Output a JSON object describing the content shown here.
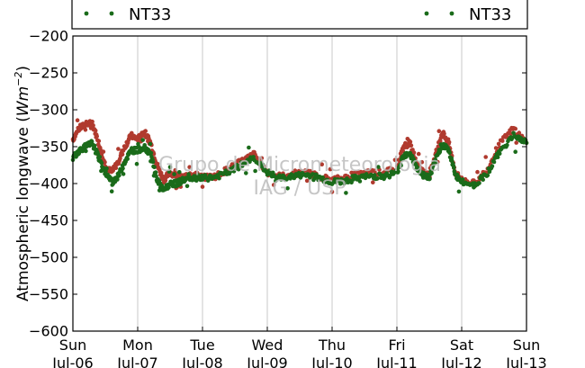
{
  "chart_data": {
    "type": "scatter",
    "title": "",
    "xlabel": "",
    "ylabel": "Atmospheric longwave (Wm^-2)",
    "ylabel_parts": {
      "main": "Atmospheric longwave (",
      "unit_base": "Wm",
      "unit_exp": "−2",
      "close": ")"
    },
    "ylim": [
      -600,
      -200
    ],
    "yticks": [
      -200,
      -250,
      -300,
      -350,
      -400,
      -450,
      -500,
      -550,
      -600
    ],
    "ytick_labels": [
      "−200",
      "−250",
      "−300",
      "−350",
      "−400",
      "−450",
      "−500",
      "−550",
      "−600"
    ],
    "xlim": [
      "2014-07-06",
      "2014-07-13"
    ],
    "xticks": [
      {
        "day": "Sun",
        "date": "Jul-06"
      },
      {
        "day": "Mon",
        "date": "Jul-07"
      },
      {
        "day": "Tue",
        "date": "Jul-08"
      },
      {
        "day": "Wed",
        "date": "Jul-09"
      },
      {
        "day": "Thu",
        "date": "Jul-10"
      },
      {
        "day": "Fri",
        "date": "Jul-11"
      },
      {
        "day": "Sat",
        "date": "Jul-12"
      },
      {
        "day": "Sun",
        "date": "Jul-13"
      }
    ],
    "grid": "vertical",
    "legend": [
      {
        "label": "NT33",
        "color": "#1a6b1a",
        "position": "top-left"
      },
      {
        "label": "NT33",
        "color": "#1a6b1a",
        "position": "top-right"
      }
    ],
    "series": [
      {
        "color": "#b03a2e",
        "x": [
          0,
          0.1,
          0.2,
          0.3,
          0.4,
          0.5,
          0.6,
          0.7,
          0.8,
          0.9,
          1.0,
          1.1,
          1.2,
          1.3,
          1.4,
          1.5,
          1.6,
          1.7,
          1.8,
          1.9,
          2.0,
          2.2,
          2.4,
          2.6,
          2.8,
          3.0,
          3.2,
          3.4,
          3.6,
          3.8,
          4.0,
          4.2,
          4.4,
          4.6,
          4.8,
          5.0,
          5.1,
          5.2,
          5.3,
          5.4,
          5.5,
          5.6,
          5.7,
          5.8,
          5.9,
          6.0,
          6.2,
          6.4,
          6.6,
          6.8,
          7.0
        ],
        "y": [
          -340,
          -325,
          -320,
          -318,
          -345,
          -375,
          -385,
          -370,
          -350,
          -335,
          -340,
          -330,
          -345,
          -375,
          -395,
          -385,
          -390,
          -392,
          -390,
          -388,
          -392,
          -390,
          -380,
          -370,
          -360,
          -385,
          -390,
          -388,
          -385,
          -390,
          -395,
          -392,
          -388,
          -385,
          -385,
          -380,
          -350,
          -345,
          -370,
          -385,
          -390,
          -360,
          -330,
          -345,
          -385,
          -395,
          -400,
          -380,
          -345,
          -325,
          -345
        ]
      },
      {
        "color": "#1a6b1a",
        "x": [
          0,
          0.1,
          0.2,
          0.3,
          0.4,
          0.5,
          0.6,
          0.7,
          0.8,
          0.9,
          1.0,
          1.1,
          1.2,
          1.3,
          1.4,
          1.5,
          1.6,
          1.7,
          1.8,
          1.9,
          2.0,
          2.2,
          2.4,
          2.6,
          2.8,
          3.0,
          3.2,
          3.4,
          3.6,
          3.8,
          4.0,
          4.2,
          4.4,
          4.6,
          4.8,
          5.0,
          5.1,
          5.2,
          5.3,
          5.4,
          5.5,
          5.6,
          5.7,
          5.8,
          5.9,
          6.0,
          6.2,
          6.4,
          6.6,
          6.8,
          7.0
        ],
        "y": [
          -365,
          -355,
          -350,
          -345,
          -365,
          -385,
          -398,
          -390,
          -370,
          -355,
          -355,
          -350,
          -360,
          -395,
          -410,
          -400,
          -400,
          -395,
          -393,
          -392,
          -393,
          -391,
          -385,
          -375,
          -365,
          -385,
          -393,
          -390,
          -388,
          -392,
          -398,
          -396,
          -392,
          -390,
          -390,
          -385,
          -362,
          -358,
          -378,
          -388,
          -392,
          -368,
          -345,
          -355,
          -388,
          -398,
          -402,
          -385,
          -355,
          -335,
          -345
        ]
      }
    ]
  },
  "watermark": {
    "line1": "Grupo de Micrometeorologia",
    "line2": "IAG / USP"
  }
}
